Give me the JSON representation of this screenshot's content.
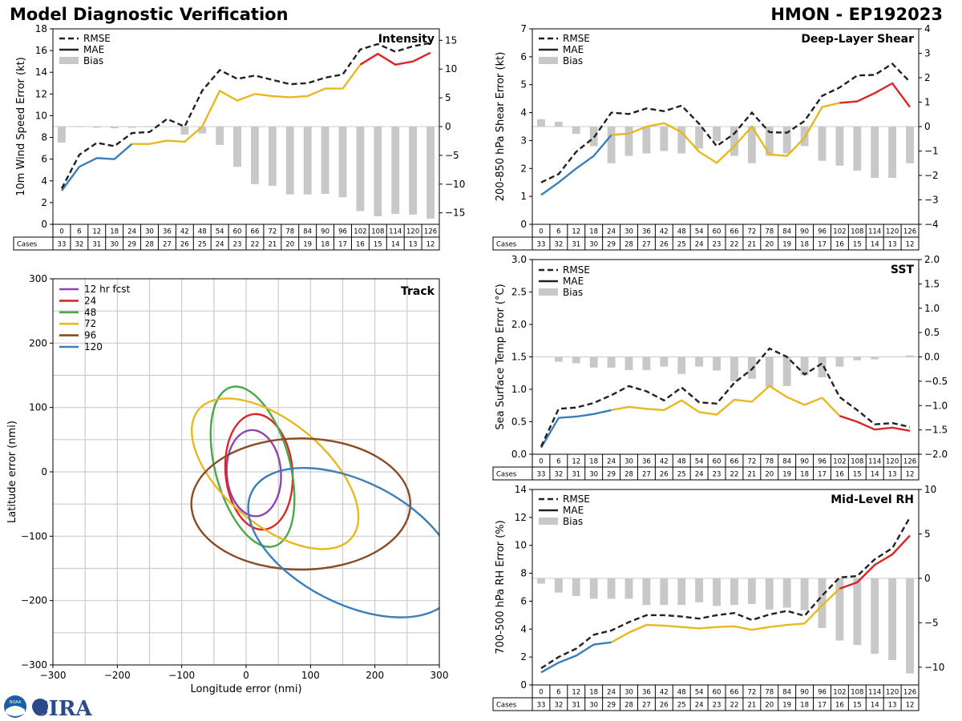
{
  "header": {
    "title": "Model Diagnostic Verification",
    "model_storm": "HMON - EP192023"
  },
  "colors": {
    "rmse": "#222222",
    "bias": "#c8c8c8",
    "grid": "#cccccc",
    "segment_colors": [
      "#3a7fb8",
      "#e8b820",
      "#dc2626"
    ],
    "track": [
      "#8e44ad",
      "#dc2626",
      "#4aa84a",
      "#e8b820",
      "#8b4a22",
      "#3a7fb8"
    ]
  },
  "hours": [
    "0",
    "6",
    "12",
    "18",
    "24",
    "30",
    "36",
    "42",
    "48",
    "54",
    "60",
    "66",
    "72",
    "78",
    "84",
    "90",
    "96",
    "102",
    "108",
    "114",
    "120",
    "126"
  ],
  "cases_label": "Cases",
  "cases": [
    "33",
    "32",
    "31",
    "30",
    "29",
    "28",
    "27",
    "26",
    "25",
    "24",
    "23",
    "22",
    "21",
    "20",
    "19",
    "18",
    "17",
    "16",
    "15",
    "14",
    "13",
    "12"
  ],
  "legend_error": [
    "RMSE",
    "MAE",
    "Bias"
  ],
  "chart_data": [
    {
      "id": "intensity",
      "type": "line",
      "title": "Intensity",
      "ylabel": "10m Wind Speed Error (kt)",
      "ylim": [
        0,
        18
      ],
      "yticks": [
        "0",
        "2",
        "4",
        "6",
        "8",
        "10",
        "12",
        "14",
        "16",
        "18"
      ],
      "y2lim": [
        -17,
        17
      ],
      "y2ticks": [
        "−15",
        "−10",
        "−5",
        "0",
        "5",
        "10",
        "15"
      ],
      "y2tickvals": [
        -15,
        -10,
        -5,
        0,
        5,
        10,
        15
      ],
      "rmse": [
        3.3,
        6.4,
        7.5,
        7.2,
        8.4,
        8.5,
        9.7,
        9.0,
        12.3,
        14.2,
        13.4,
        13.7,
        13.3,
        12.9,
        13.0,
        13.5,
        13.8,
        16.1,
        16.6,
        15.9,
        16.4,
        16.7
      ],
      "mae": [
        3.1,
        5.3,
        6.1,
        6.0,
        7.4,
        7.4,
        7.7,
        7.6,
        9.0,
        12.3,
        11.4,
        12.0,
        11.8,
        11.7,
        11.8,
        12.5,
        12.5,
        14.7,
        15.7,
        14.7,
        15.0,
        15.8
      ],
      "bias": [
        -2.8,
        -0.1,
        -0.2,
        -0.3,
        -0.2,
        -0.1,
        0,
        -1.4,
        -1.2,
        -3.2,
        -7.0,
        -10.0,
        -10.3,
        -11.8,
        -11.8,
        -11.7,
        -12.3,
        -14.7,
        -15.6,
        -15.2,
        -15.3,
        -16.0
      ],
      "mae_breaks": [
        4,
        17
      ]
    },
    {
      "id": "shear",
      "type": "line",
      "title": "Deep-Layer Shear",
      "ylabel": "200-850 hPa Shear Error (kt)",
      "ylim": [
        0,
        7
      ],
      "yticks": [
        "0",
        "1",
        "2",
        "3",
        "4",
        "5",
        "6",
        "7"
      ],
      "y2lim": [
        -4,
        4
      ],
      "y2ticks": [
        "−4",
        "−3",
        "−2",
        "−1",
        "0",
        "1",
        "2",
        "3",
        "4"
      ],
      "y2tickvals": [
        -4,
        -3,
        -2,
        -1,
        0,
        1,
        2,
        3,
        4
      ],
      "rmse": [
        1.5,
        1.8,
        2.6,
        3.1,
        4.0,
        3.95,
        4.15,
        4.05,
        4.25,
        3.6,
        2.8,
        3.25,
        4.0,
        3.3,
        3.28,
        3.7,
        4.6,
        4.9,
        5.33,
        5.35,
        5.75,
        5.1
      ],
      "mae": [
        1.05,
        1.5,
        2.0,
        2.45,
        3.2,
        3.25,
        3.5,
        3.62,
        3.3,
        2.6,
        2.2,
        2.8,
        3.5,
        2.5,
        2.45,
        3.1,
        4.2,
        4.35,
        4.4,
        4.7,
        5.05,
        4.2
      ],
      "bias": [
        0.3,
        0.2,
        -0.3,
        -0.8,
        -1.5,
        -1.2,
        -1.1,
        -1.0,
        -1.1,
        -0.9,
        -0.6,
        -1.2,
        -1.5,
        -1.2,
        -1.1,
        -0.8,
        -1.4,
        -1.6,
        -1.8,
        -2.1,
        -2.1,
        -1.5
      ],
      "mae_breaks": [
        4,
        17
      ]
    },
    {
      "id": "sst",
      "type": "line",
      "title": "SST",
      "ylabel": "Sea Surface Temp Error (°C)",
      "ylim": [
        0,
        3
      ],
      "yticks": [
        "0.0",
        "0.5",
        "1.0",
        "1.5",
        "2.0",
        "2.5",
        "3.0"
      ],
      "y2lim": [
        -2,
        2
      ],
      "y2ticks": [
        "−2.0",
        "−1.5",
        "−1.0",
        "−0.5",
        "0.0",
        "0.5",
        "1.0",
        "1.5",
        "2.0"
      ],
      "y2tickvals": [
        -2,
        -1.5,
        -1,
        -0.5,
        0,
        0.5,
        1,
        1.5,
        2
      ],
      "rmse": [
        0.12,
        0.7,
        0.72,
        0.79,
        0.91,
        1.05,
        0.97,
        0.83,
        1.03,
        0.8,
        0.78,
        1.1,
        1.31,
        1.63,
        1.5,
        1.23,
        1.4,
        0.88,
        0.68,
        0.46,
        0.48,
        0.42
      ],
      "mae": [
        0.1,
        0.56,
        0.58,
        0.62,
        0.68,
        0.73,
        0.7,
        0.68,
        0.83,
        0.65,
        0.61,
        0.84,
        0.81,
        1.05,
        0.88,
        0.76,
        0.87,
        0.59,
        0.5,
        0.38,
        0.41,
        0.36
      ],
      "bias": [
        0,
        -0.1,
        -0.13,
        -0.22,
        -0.22,
        -0.27,
        -0.27,
        -0.2,
        -0.35,
        -0.2,
        -0.28,
        -0.5,
        -0.45,
        -0.62,
        -0.6,
        -0.38,
        -0.42,
        -0.2,
        -0.07,
        -0.05,
        -0.01,
        0.03
      ],
      "mae_breaks": [
        4,
        17
      ]
    },
    {
      "id": "rh",
      "type": "line",
      "title": "Mid-Level RH",
      "ylabel": "700-500 hPa RH Error (%)",
      "ylim": [
        0,
        14
      ],
      "yticks": [
        "0",
        "2",
        "4",
        "6",
        "8",
        "10",
        "12",
        "14"
      ],
      "y2lim": [
        -12,
        10
      ],
      "y2ticks": [
        "−10",
        "−5",
        "0",
        "5",
        "10"
      ],
      "y2tickvals": [
        -10,
        -5,
        0,
        5,
        10
      ],
      "rmse": [
        1.2,
        2.0,
        2.6,
        3.6,
        3.9,
        4.5,
        5.0,
        5.0,
        4.9,
        4.75,
        5.0,
        5.15,
        4.65,
        5.05,
        5.3,
        4.95,
        6.4,
        7.7,
        7.8,
        9.0,
        9.8,
        12.0
      ],
      "mae": [
        0.9,
        1.6,
        2.1,
        2.9,
        3.05,
        3.75,
        4.3,
        4.25,
        4.15,
        4.05,
        4.15,
        4.2,
        3.95,
        4.15,
        4.3,
        4.4,
        5.7,
        6.9,
        7.35,
        8.6,
        9.35,
        10.7
      ],
      "bias": [
        -0.6,
        -1.6,
        -2.0,
        -2.3,
        -2.3,
        -2.3,
        -3.0,
        -3.0,
        -3.0,
        -2.7,
        -3.1,
        -3.0,
        -2.9,
        -3.5,
        -3.3,
        -3.6,
        -5.6,
        -7.0,
        -7.5,
        -8.5,
        -9.2,
        -10.7
      ],
      "mae_breaks": [
        4,
        17
      ]
    },
    {
      "id": "track",
      "type": "scatter",
      "title": "Track",
      "xlabel": "Longitude error (nmi)",
      "ylabel": "Latitude error (nmi)",
      "xlim": [
        -300,
        300
      ],
      "ylim": [
        -300,
        300
      ],
      "ticks": [
        "−300",
        "−200",
        "−100",
        "0",
        "100",
        "200",
        "300"
      ],
      "tickvals": [
        -300,
        -200,
        -100,
        0,
        100,
        200,
        300
      ],
      "ellipses": [
        {
          "label": "12 hr fcst",
          "cx": 12,
          "cy": -2,
          "rx": 42,
          "ry": 67,
          "angle": -4
        },
        {
          "label": "24",
          "cx": 20,
          "cy": 0,
          "rx": 52,
          "ry": 90,
          "angle": -5
        },
        {
          "label": "48",
          "cx": 10,
          "cy": 8,
          "rx": 58,
          "ry": 128,
          "angle": -15
        },
        {
          "label": "72",
          "cx": 45,
          "cy": -3,
          "rx": 80,
          "ry": 155,
          "angle": -50
        },
        {
          "label": "96",
          "cx": 85,
          "cy": -50,
          "rx": 170,
          "ry": 102,
          "angle": 0
        },
        {
          "label": "120",
          "cx": 165,
          "cy": -110,
          "rx": 175,
          "ry": 95,
          "angle": 27
        }
      ]
    }
  ],
  "logo": {
    "text": "CIRA",
    "noaa": "NOAA"
  }
}
